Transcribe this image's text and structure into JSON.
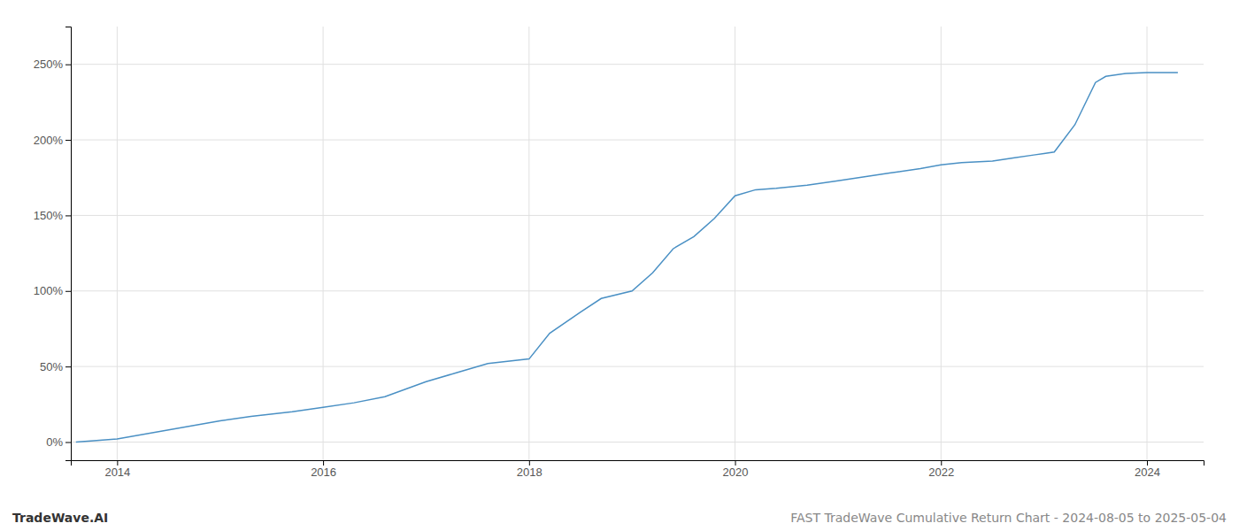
{
  "chart_data": {
    "type": "line",
    "title": "FAST TradeWave Cumulative Return Chart - 2024-08-05 to 2025-05-04",
    "annotations": [
      "TradeWave.AI"
    ],
    "x": [
      2013.6,
      2014.0,
      2014.5,
      2015.0,
      2015.3,
      2015.7,
      2016.0,
      2016.3,
      2016.6,
      2017.0,
      2017.3,
      2017.6,
      2018.0,
      2018.2,
      2018.5,
      2018.7,
      2019.0,
      2019.2,
      2019.4,
      2019.6,
      2019.8,
      2020.0,
      2020.2,
      2020.4,
      2020.7,
      2021.0,
      2021.3,
      2021.5,
      2021.8,
      2022.0,
      2022.2,
      2022.5,
      2022.7,
      2022.9,
      2023.0,
      2023.1,
      2023.3,
      2023.5,
      2023.6,
      2023.8,
      2024.0,
      2024.1,
      2024.3
    ],
    "values": [
      0.0,
      2.0,
      8.0,
      14.0,
      17.0,
      20.0,
      23.0,
      26.0,
      30.0,
      40.0,
      46.0,
      52.0,
      55.0,
      72.0,
      86.0,
      95.0,
      100.0,
      112.0,
      128.0,
      136.0,
      148.0,
      163.0,
      167.0,
      168.0,
      170.0,
      173.0,
      176.0,
      178.0,
      181.0,
      183.5,
      185.0,
      186.0,
      188.0,
      190.0,
      191.0,
      192.0,
      210.0,
      238.0,
      242.0,
      244.0,
      244.5,
      244.5,
      244.5
    ],
    "color": "#4a90c4",
    "xlim": [
      2013.55,
      2024.55
    ],
    "ylim": [
      -12,
      275
    ],
    "xticks": [
      2014,
      2016,
      2018,
      2020,
      2022,
      2024
    ],
    "yticks": [
      {
        "value": 0,
        "label": "0%"
      },
      {
        "value": 50,
        "label": "50%"
      },
      {
        "value": 100,
        "label": "100%"
      },
      {
        "value": 150,
        "label": "150%"
      },
      {
        "value": 200,
        "label": "200%"
      },
      {
        "value": 250,
        "label": "250%"
      }
    ],
    "grid": true
  }
}
